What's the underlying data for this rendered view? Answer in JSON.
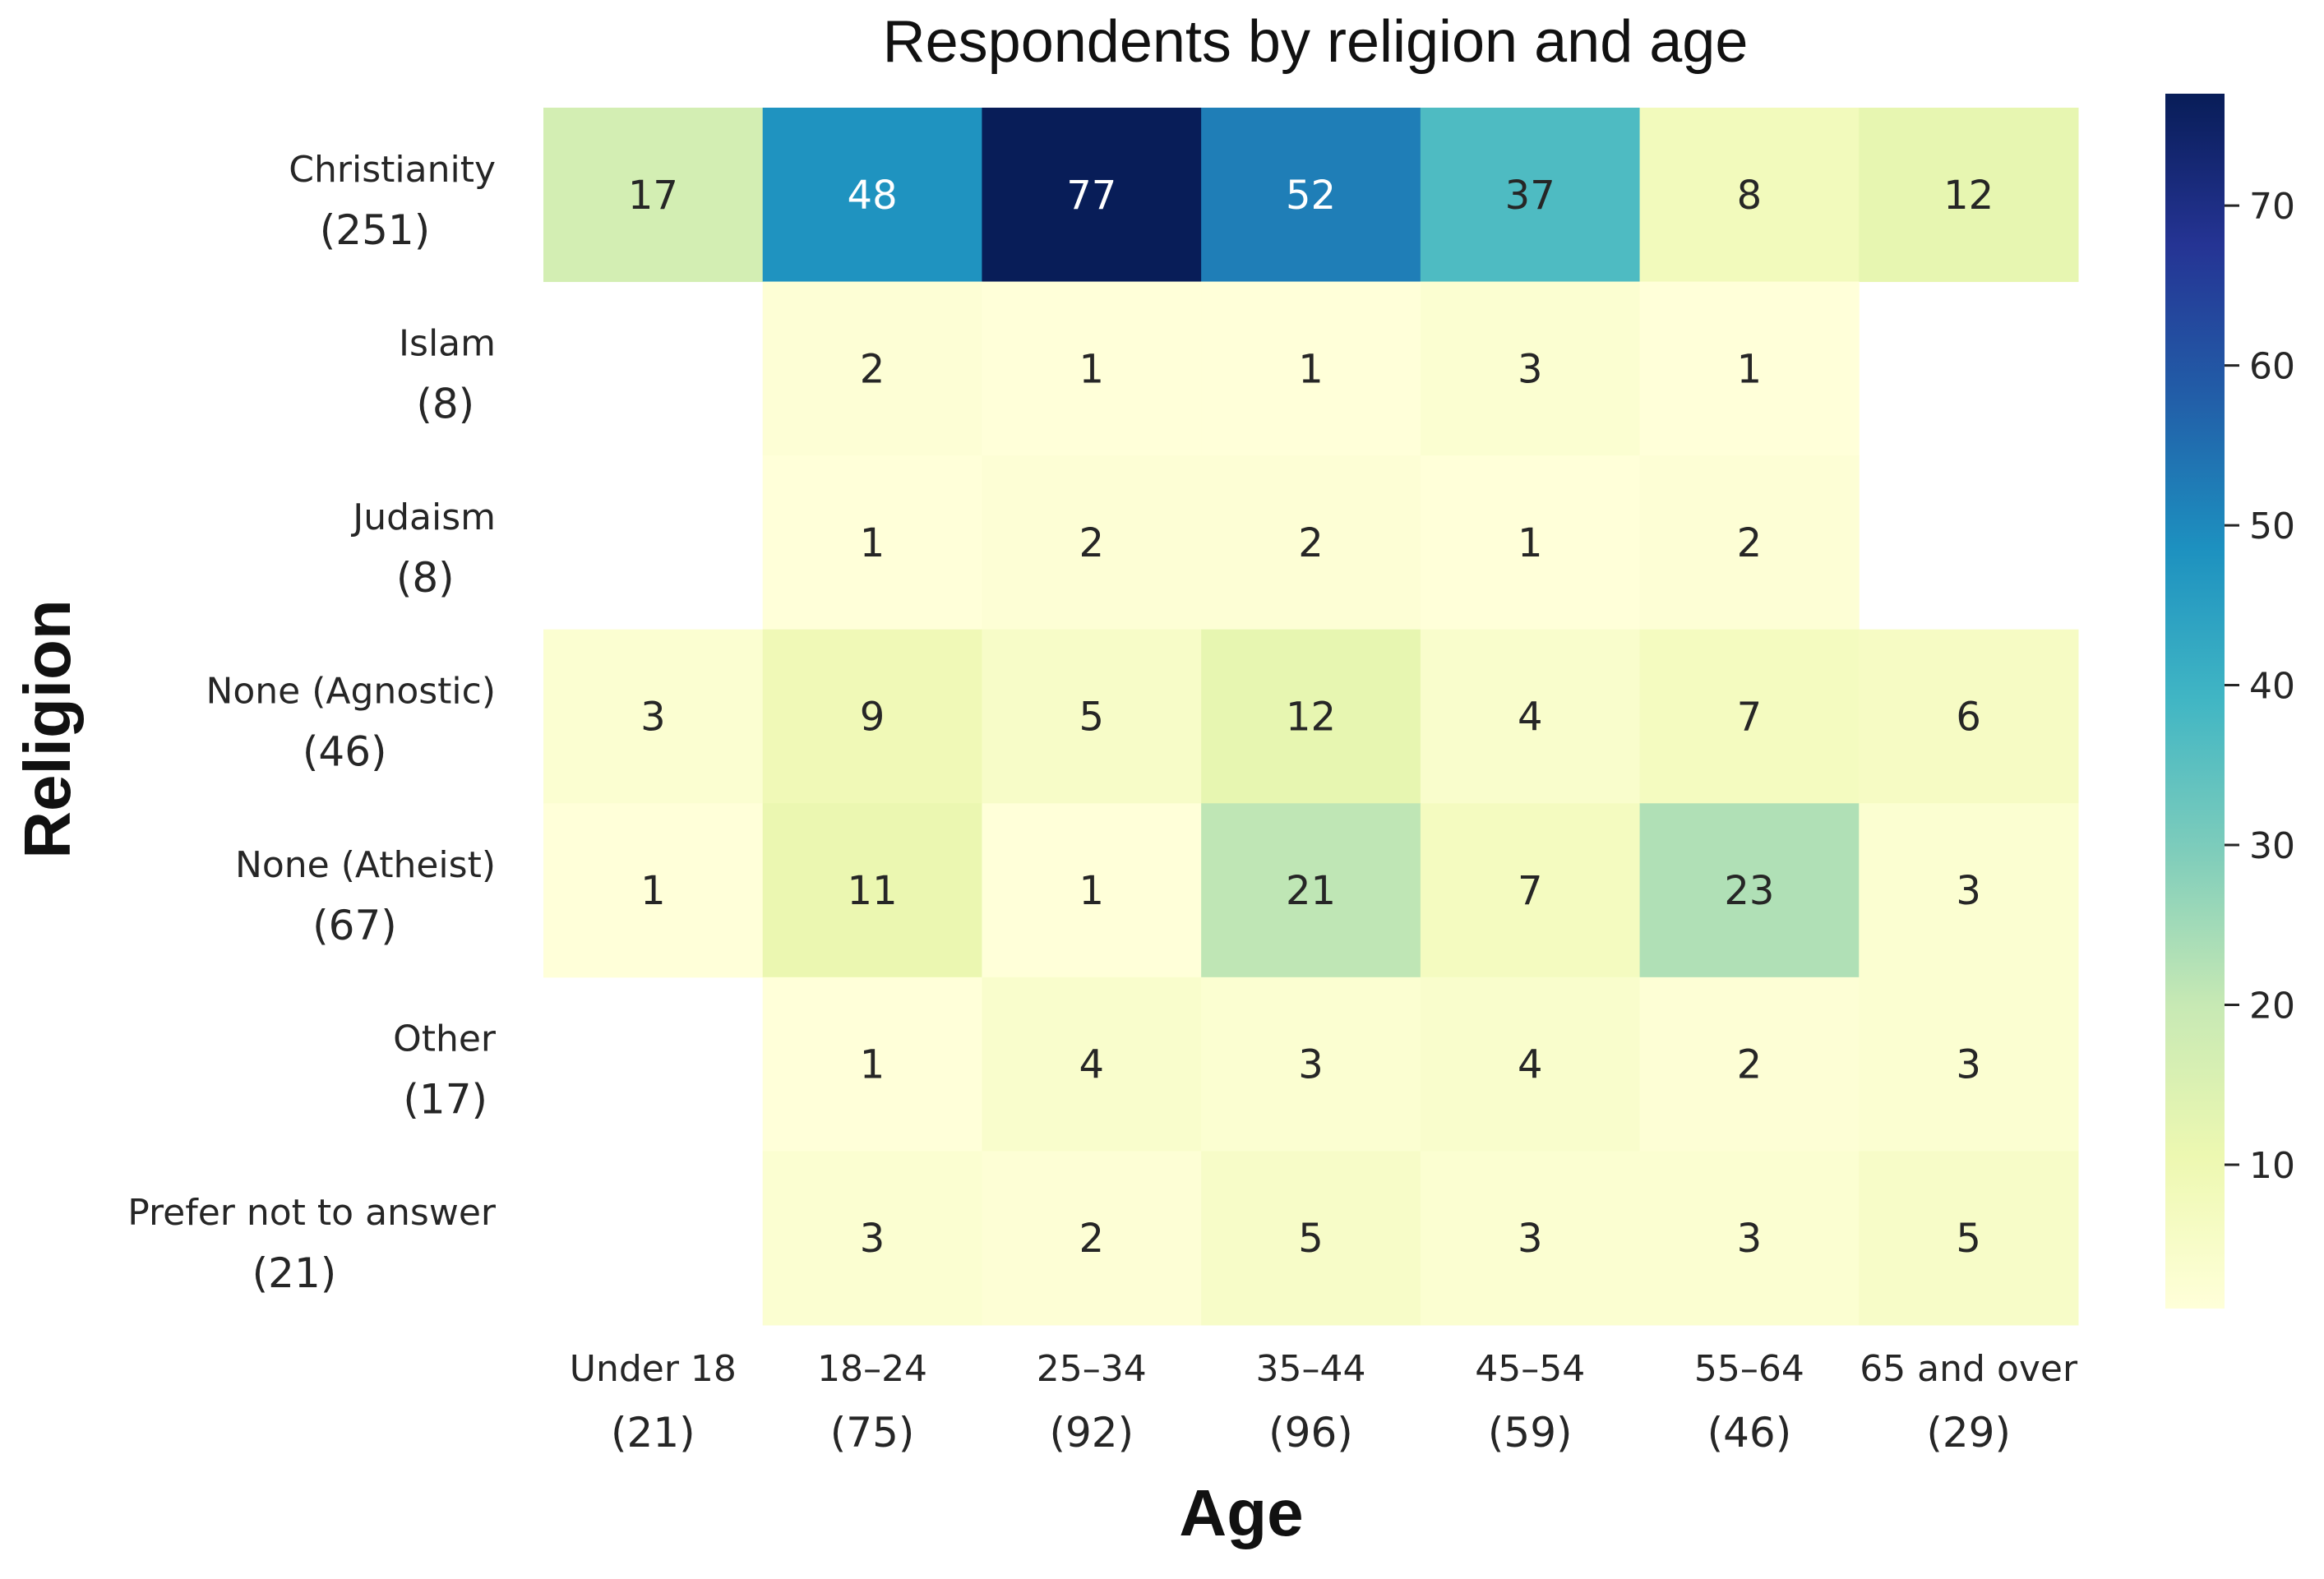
{
  "chart_data": {
    "type": "heatmap",
    "title": "Respondents by religion and age",
    "xlabel": "Age",
    "ylabel": "Religion",
    "x_categories": [
      {
        "label": "Under 18",
        "total": "(21)"
      },
      {
        "label": "18–24",
        "total": "(75)"
      },
      {
        "label": "25–34",
        "total": "(92)"
      },
      {
        "label": "35–44",
        "total": "(96)"
      },
      {
        "label": "45–54",
        "total": "(59)"
      },
      {
        "label": "55–64",
        "total": "(46)"
      },
      {
        "label": "65 and over",
        "total": "(29)"
      }
    ],
    "y_categories": [
      {
        "label": "Christianity",
        "total": "(251)"
      },
      {
        "label": "Islam",
        "total": "(8)"
      },
      {
        "label": "Judaism",
        "total": "(8)"
      },
      {
        "label": "None (Agnostic)",
        "total": "(46)"
      },
      {
        "label": "None (Atheist)",
        "total": "(67)"
      },
      {
        "label": "Other",
        "total": "(17)"
      },
      {
        "label": "Prefer not to answer",
        "total": "(21)"
      }
    ],
    "values": [
      [
        17,
        48,
        77,
        52,
        37,
        8,
        12
      ],
      [
        null,
        2,
        1,
        1,
        3,
        1,
        null
      ],
      [
        null,
        1,
        2,
        2,
        1,
        2,
        null
      ],
      [
        3,
        9,
        5,
        12,
        4,
        7,
        6
      ],
      [
        1,
        11,
        1,
        21,
        7,
        23,
        3
      ],
      [
        null,
        1,
        4,
        3,
        4,
        2,
        3
      ],
      [
        null,
        3,
        2,
        5,
        3,
        3,
        5
      ]
    ],
    "colorscale": "YlGnBu",
    "color_range": [
      1,
      77
    ],
    "colorbar_ticks": [
      10,
      20,
      30,
      40,
      50,
      60,
      70
    ],
    "colors": {
      "scale_stops": [
        "#ffffd9",
        "#edf8b1",
        "#c7e9b4",
        "#7fcdbb",
        "#41b6c4",
        "#1d91c0",
        "#225ea8",
        "#253494",
        "#081d58"
      ],
      "text_dark": "#262626",
      "text_light": "#ffffff"
    }
  }
}
